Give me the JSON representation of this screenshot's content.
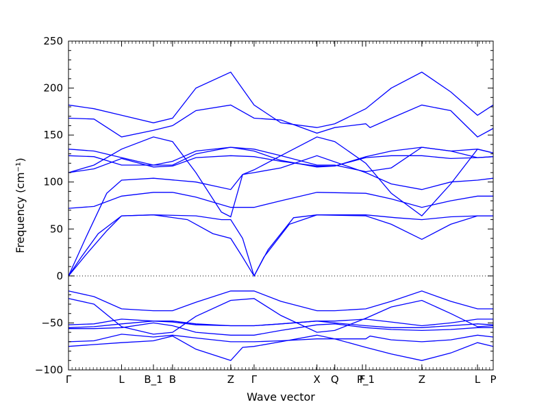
{
  "chart_data": {
    "type": "line",
    "xlabel": "Wave vector",
    "ylabel": "Frequency (cm⁻¹)",
    "ylim": [
      -100,
      250
    ],
    "yticks": [
      -100,
      -50,
      0,
      50,
      100,
      150,
      200,
      250
    ],
    "grid": false,
    "line_color": "#0000ff",
    "zero_line": "dotted",
    "x_labels": [
      {
        "label": "Γ",
        "position": 0.0
      },
      {
        "label": "L",
        "position": 0.125
      },
      {
        "label": "B_1",
        "position": 0.2
      },
      {
        "label": "B",
        "position": 0.245
      },
      {
        "label": "Z",
        "position": 0.382
      },
      {
        "label": "Γ",
        "position": 0.437
      },
      {
        "label": "X",
        "position": 0.585
      },
      {
        "label": "Q",
        "position": 0.627
      },
      {
        "label": "F",
        "position": 0.692
      },
      {
        "label": "P_1",
        "position": 0.7
      },
      {
        "label": "Z",
        "position": 0.832
      },
      {
        "label": "L",
        "position": 0.963
      },
      {
        "label": "P",
        "position": 1.0
      }
    ],
    "series": [
      {
        "values": [
          [
            0,
            0
          ],
          [
            0.03,
            20
          ],
          [
            0.07,
            45
          ],
          [
            0.125,
            64
          ],
          [
            0.2,
            65
          ],
          [
            0.3,
            64
          ],
          [
            0.36,
            60
          ],
          [
            0.382,
            60
          ],
          [
            0.41,
            40
          ],
          [
            0.437,
            0
          ],
          [
            0.46,
            20
          ],
          [
            0.52,
            55
          ],
          [
            0.585,
            65
          ],
          [
            0.7,
            65
          ],
          [
            0.77,
            62
          ],
          [
            0.832,
            60
          ],
          [
            0.9,
            63
          ],
          [
            0.963,
            64
          ],
          [
            1.0,
            64
          ]
        ]
      },
      {
        "values": [
          [
            0,
            0
          ],
          [
            0.04,
            22
          ],
          [
            0.09,
            48
          ],
          [
            0.125,
            64
          ],
          [
            0.2,
            65
          ],
          [
            0.28,
            60
          ],
          [
            0.34,
            45
          ],
          [
            0.382,
            40
          ],
          [
            0.41,
            20
          ],
          [
            0.437,
            0
          ],
          [
            0.47,
            28
          ],
          [
            0.53,
            62
          ],
          [
            0.585,
            65
          ],
          [
            0.7,
            64
          ],
          [
            0.76,
            55
          ],
          [
            0.832,
            39
          ],
          [
            0.9,
            55
          ],
          [
            0.963,
            64
          ],
          [
            1.0,
            64
          ]
        ]
      },
      {
        "values": [
          [
            0,
            72
          ],
          [
            0.06,
            74
          ],
          [
            0.125,
            85
          ],
          [
            0.2,
            89
          ],
          [
            0.245,
            89
          ],
          [
            0.3,
            84
          ],
          [
            0.382,
            73
          ],
          [
            0.437,
            73
          ],
          [
            0.5,
            80
          ],
          [
            0.585,
            89
          ],
          [
            0.7,
            88
          ],
          [
            0.76,
            82
          ],
          [
            0.832,
            73
          ],
          [
            0.9,
            80
          ],
          [
            0.963,
            85
          ],
          [
            1.0,
            85
          ]
        ]
      },
      {
        "values": [
          [
            0,
            0
          ],
          [
            0.04,
            40
          ],
          [
            0.09,
            88
          ],
          [
            0.125,
            102
          ],
          [
            0.2,
            104
          ],
          [
            0.3,
            100
          ],
          [
            0.382,
            92
          ],
          [
            0.41,
            108
          ],
          [
            0.437,
            110
          ],
          [
            0.5,
            115
          ],
          [
            0.585,
            128
          ],
          [
            0.7,
            110
          ],
          [
            0.76,
            98
          ],
          [
            0.832,
            92
          ],
          [
            0.9,
            100
          ],
          [
            0.963,
            102
          ],
          [
            1.0,
            104
          ]
        ]
      },
      {
        "values": [
          [
            0,
            110
          ],
          [
            0.06,
            114
          ],
          [
            0.125,
            125
          ],
          [
            0.2,
            116
          ],
          [
            0.245,
            117
          ],
          [
            0.3,
            126
          ],
          [
            0.382,
            128
          ],
          [
            0.437,
            127
          ],
          [
            0.5,
            122
          ],
          [
            0.585,
            117
          ],
          [
            0.627,
            117
          ],
          [
            0.7,
            126
          ],
          [
            0.76,
            128
          ],
          [
            0.832,
            128
          ],
          [
            0.9,
            125
          ],
          [
            0.963,
            126
          ],
          [
            1.0,
            127
          ]
        ]
      },
      {
        "values": [
          [
            0,
            128
          ],
          [
            0.06,
            127
          ],
          [
            0.125,
            118
          ],
          [
            0.2,
            118
          ],
          [
            0.245,
            122
          ],
          [
            0.3,
            133
          ],
          [
            0.382,
            137
          ],
          [
            0.437,
            135
          ],
          [
            0.5,
            128
          ],
          [
            0.585,
            118
          ],
          [
            0.627,
            118
          ],
          [
            0.7,
            111
          ],
          [
            0.76,
            115
          ],
          [
            0.832,
            137
          ],
          [
            0.9,
            133
          ],
          [
            0.963,
            126
          ],
          [
            1.0,
            127
          ]
        ]
      },
      {
        "values": [
          [
            0,
            135
          ],
          [
            0.06,
            133
          ],
          [
            0.125,
            126
          ],
          [
            0.2,
            118
          ],
          [
            0.245,
            118
          ],
          [
            0.3,
            130
          ],
          [
            0.382,
            137
          ],
          [
            0.437,
            133
          ],
          [
            0.5,
            123
          ],
          [
            0.585,
            116
          ],
          [
            0.627,
            117
          ],
          [
            0.7,
            127
          ],
          [
            0.76,
            133
          ],
          [
            0.832,
            137
          ],
          [
            0.9,
            133
          ],
          [
            0.963,
            135
          ],
          [
            1.0,
            131
          ]
        ]
      },
      {
        "values": [
          [
            0,
            110
          ],
          [
            0.06,
            118
          ],
          [
            0.125,
            135
          ],
          [
            0.2,
            148
          ],
          [
            0.245,
            143
          ],
          [
            0.3,
            110
          ],
          [
            0.36,
            68
          ],
          [
            0.382,
            63
          ],
          [
            0.41,
            108
          ],
          [
            0.437,
            113
          ],
          [
            0.5,
            128
          ],
          [
            0.585,
            148
          ],
          [
            0.627,
            143
          ],
          [
            0.7,
            120
          ],
          [
            0.76,
            88
          ],
          [
            0.832,
            64
          ],
          [
            0.9,
            98
          ],
          [
            0.963,
            135
          ],
          [
            1.0,
            131
          ]
        ]
      },
      {
        "values": [
          [
            0,
            168
          ],
          [
            0.06,
            167
          ],
          [
            0.125,
            148
          ],
          [
            0.2,
            155
          ],
          [
            0.245,
            160
          ],
          [
            0.3,
            176
          ],
          [
            0.382,
            182
          ],
          [
            0.437,
            168
          ],
          [
            0.5,
            166
          ],
          [
            0.585,
            152
          ],
          [
            0.627,
            158
          ],
          [
            0.7,
            162
          ],
          [
            0.71,
            158
          ],
          [
            0.76,
            168
          ],
          [
            0.832,
            182
          ],
          [
            0.9,
            176
          ],
          [
            0.963,
            148
          ],
          [
            1.0,
            157
          ]
        ]
      },
      {
        "values": [
          [
            0,
            182
          ],
          [
            0.06,
            178
          ],
          [
            0.125,
            171
          ],
          [
            0.2,
            163
          ],
          [
            0.245,
            168
          ],
          [
            0.3,
            200
          ],
          [
            0.382,
            217
          ],
          [
            0.437,
            182
          ],
          [
            0.5,
            163
          ],
          [
            0.585,
            158
          ],
          [
            0.627,
            162
          ],
          [
            0.7,
            178
          ],
          [
            0.76,
            200
          ],
          [
            0.832,
            217
          ],
          [
            0.9,
            196
          ],
          [
            0.963,
            171
          ],
          [
            1.0,
            182
          ]
        ]
      },
      {
        "values": [
          [
            0,
            -16
          ],
          [
            0.06,
            -22
          ],
          [
            0.125,
            -35
          ],
          [
            0.2,
            -37
          ],
          [
            0.245,
            -37
          ],
          [
            0.3,
            -28
          ],
          [
            0.382,
            -16
          ],
          [
            0.437,
            -16
          ],
          [
            0.5,
            -27
          ],
          [
            0.585,
            -37
          ],
          [
            0.627,
            -37
          ],
          [
            0.7,
            -35
          ],
          [
            0.76,
            -27
          ],
          [
            0.832,
            -16
          ],
          [
            0.9,
            -27
          ],
          [
            0.963,
            -35
          ],
          [
            1.0,
            -35
          ]
        ]
      },
      {
        "values": [
          [
            0,
            -24
          ],
          [
            0.06,
            -30
          ],
          [
            0.125,
            -54
          ],
          [
            0.2,
            -62
          ],
          [
            0.245,
            -60
          ],
          [
            0.3,
            -43
          ],
          [
            0.382,
            -26
          ],
          [
            0.437,
            -24
          ],
          [
            0.5,
            -42
          ],
          [
            0.585,
            -60
          ],
          [
            0.627,
            -58
          ],
          [
            0.7,
            -45
          ],
          [
            0.76,
            -33
          ],
          [
            0.832,
            -26
          ],
          [
            0.9,
            -40
          ],
          [
            0.963,
            -54
          ],
          [
            1.0,
            -53
          ]
        ]
      },
      {
        "values": [
          [
            0,
            -52
          ],
          [
            0.06,
            -51
          ],
          [
            0.125,
            -46
          ],
          [
            0.2,
            -48
          ],
          [
            0.245,
            -48
          ],
          [
            0.3,
            -51
          ],
          [
            0.382,
            -53
          ],
          [
            0.437,
            -53
          ],
          [
            0.5,
            -51
          ],
          [
            0.585,
            -48
          ],
          [
            0.627,
            -48
          ],
          [
            0.7,
            -46
          ],
          [
            0.76,
            -49
          ],
          [
            0.832,
            -53
          ],
          [
            0.9,
            -50
          ],
          [
            0.963,
            -46
          ],
          [
            1.0,
            -46
          ]
        ]
      },
      {
        "values": [
          [
            0,
            -55
          ],
          [
            0.06,
            -54
          ],
          [
            0.125,
            -51
          ],
          [
            0.2,
            -48
          ],
          [
            0.245,
            -49
          ],
          [
            0.3,
            -52
          ],
          [
            0.382,
            -53
          ],
          [
            0.437,
            -53
          ],
          [
            0.5,
            -51
          ],
          [
            0.585,
            -48
          ],
          [
            0.627,
            -50
          ],
          [
            0.7,
            -53
          ],
          [
            0.76,
            -55
          ],
          [
            0.832,
            -55
          ],
          [
            0.9,
            -53
          ],
          [
            0.963,
            -51
          ],
          [
            1.0,
            -52
          ]
        ]
      },
      {
        "values": [
          [
            0,
            -56
          ],
          [
            0.06,
            -56
          ],
          [
            0.125,
            -55
          ],
          [
            0.2,
            -50
          ],
          [
            0.245,
            -53
          ],
          [
            0.3,
            -60
          ],
          [
            0.382,
            -63
          ],
          [
            0.437,
            -63
          ],
          [
            0.5,
            -58
          ],
          [
            0.585,
            -52
          ],
          [
            0.627,
            -51
          ],
          [
            0.7,
            -55
          ],
          [
            0.76,
            -57
          ],
          [
            0.832,
            -58
          ],
          [
            0.9,
            -57
          ],
          [
            0.963,
            -55
          ],
          [
            1.0,
            -55
          ]
        ]
      },
      {
        "values": [
          [
            0,
            -70
          ],
          [
            0.06,
            -69
          ],
          [
            0.125,
            -62
          ],
          [
            0.2,
            -65
          ],
          [
            0.245,
            -63
          ],
          [
            0.3,
            -66
          ],
          [
            0.382,
            -70
          ],
          [
            0.437,
            -70
          ],
          [
            0.5,
            -69
          ],
          [
            0.585,
            -67
          ],
          [
            0.627,
            -67
          ],
          [
            0.7,
            -67
          ],
          [
            0.71,
            -64
          ],
          [
            0.76,
            -68
          ],
          [
            0.832,
            -70
          ],
          [
            0.9,
            -68
          ],
          [
            0.963,
            -63
          ],
          [
            1.0,
            -65
          ]
        ]
      },
      {
        "values": [
          [
            0,
            -75
          ],
          [
            0.06,
            -73
          ],
          [
            0.125,
            -71
          ],
          [
            0.2,
            -69
          ],
          [
            0.245,
            -64
          ],
          [
            0.3,
            -78
          ],
          [
            0.382,
            -90
          ],
          [
            0.41,
            -76
          ],
          [
            0.437,
            -75
          ],
          [
            0.5,
            -70
          ],
          [
            0.585,
            -63
          ],
          [
            0.627,
            -67
          ],
          [
            0.7,
            -76
          ],
          [
            0.76,
            -83
          ],
          [
            0.832,
            -90
          ],
          [
            0.9,
            -82
          ],
          [
            0.963,
            -71
          ],
          [
            1.0,
            -75
          ]
        ]
      }
    ]
  }
}
